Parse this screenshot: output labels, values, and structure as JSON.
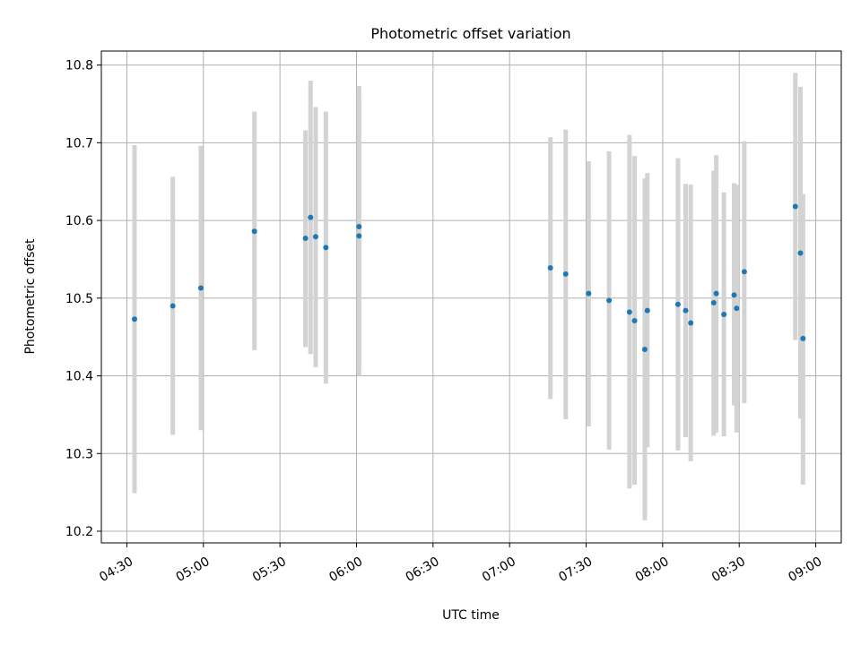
{
  "chart_data": {
    "type": "scatter",
    "title": "Photometric offset variation",
    "xlabel": "UTC time",
    "ylabel": "Photometric offset",
    "xlim": [
      "04:20",
      "09:10"
    ],
    "ylim": [
      10.185,
      10.818
    ],
    "x_ticks": [
      "04:30",
      "05:00",
      "05:30",
      "06:00",
      "06:30",
      "07:00",
      "07:30",
      "08:00",
      "08:30",
      "09:00"
    ],
    "y_ticks": [
      "10.2",
      "10.3",
      "10.4",
      "10.5",
      "10.6",
      "10.7",
      "10.8"
    ],
    "grid": true,
    "colors": {
      "point": "#1f77b4",
      "error_bar": "#d3d3d3",
      "grid": "#b0b0b0"
    },
    "series": [
      {
        "points": [
          {
            "x": "04:33",
            "y": 10.473,
            "low": 10.249,
            "high": 10.697
          },
          {
            "x": "04:48",
            "y": 10.49,
            "low": 10.324,
            "high": 10.656
          },
          {
            "x": "04:59",
            "y": 10.513,
            "low": 10.33,
            "high": 10.696
          },
          {
            "x": "05:20",
            "y": 10.586,
            "low": 10.433,
            "high": 10.74
          },
          {
            "x": "05:40",
            "y": 10.577,
            "low": 10.437,
            "high": 10.716
          },
          {
            "x": "05:42",
            "y": 10.604,
            "low": 10.428,
            "high": 10.78
          },
          {
            "x": "05:44",
            "y": 10.579,
            "low": 10.411,
            "high": 10.746
          },
          {
            "x": "05:48",
            "y": 10.565,
            "low": 10.39,
            "high": 10.74
          },
          {
            "x": "06:01",
            "y": 10.592,
            "low": 10.41,
            "high": 10.773
          },
          {
            "x": "06:01",
            "y": 10.58,
            "low": 10.4,
            "high": 10.76
          },
          {
            "x": "07:16",
            "y": 10.539,
            "low": 10.37,
            "high": 10.707
          },
          {
            "x": "07:22",
            "y": 10.531,
            "low": 10.344,
            "high": 10.717
          },
          {
            "x": "07:31",
            "y": 10.506,
            "low": 10.335,
            "high": 10.676
          },
          {
            "x": "07:39",
            "y": 10.497,
            "low": 10.305,
            "high": 10.689
          },
          {
            "x": "07:47",
            "y": 10.482,
            "low": 10.255,
            "high": 10.71
          },
          {
            "x": "07:49",
            "y": 10.471,
            "low": 10.26,
            "high": 10.683
          },
          {
            "x": "07:53",
            "y": 10.434,
            "low": 10.214,
            "high": 10.654
          },
          {
            "x": "07:54",
            "y": 10.484,
            "low": 10.308,
            "high": 10.661
          },
          {
            "x": "08:06",
            "y": 10.492,
            "low": 10.304,
            "high": 10.68
          },
          {
            "x": "08:09",
            "y": 10.484,
            "low": 10.321,
            "high": 10.647
          },
          {
            "x": "08:11",
            "y": 10.468,
            "low": 10.29,
            "high": 10.646
          },
          {
            "x": "08:20",
            "y": 10.494,
            "low": 10.323,
            "high": 10.664
          },
          {
            "x": "08:21",
            "y": 10.506,
            "low": 10.327,
            "high": 10.684
          },
          {
            "x": "08:24",
            "y": 10.479,
            "low": 10.322,
            "high": 10.636
          },
          {
            "x": "08:28",
            "y": 10.504,
            "low": 10.362,
            "high": 10.648
          },
          {
            "x": "08:29",
            "y": 10.487,
            "low": 10.327,
            "high": 10.646
          },
          {
            "x": "08:32",
            "y": 10.534,
            "low": 10.365,
            "high": 10.702
          },
          {
            "x": "08:52",
            "y": 10.618,
            "low": 10.446,
            "high": 10.79
          },
          {
            "x": "08:54",
            "y": 10.558,
            "low": 10.345,
            "high": 10.772
          },
          {
            "x": "08:55",
            "y": 10.448,
            "low": 10.26,
            "high": 10.634
          }
        ]
      }
    ]
  }
}
